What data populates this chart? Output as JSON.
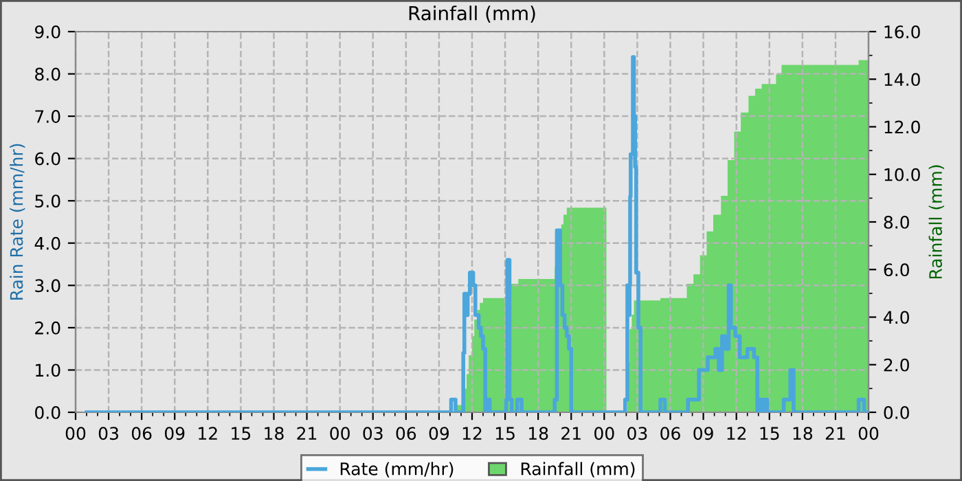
{
  "chart_data": {
    "type": "step",
    "title": "Rainfall (mm)",
    "ylabel": "Rain Rate (mm/hr)",
    "y2label": "Rainfall (mm)",
    "xlim": [
      0,
      72
    ],
    "xticks": [
      {
        "value": 0,
        "label": "00"
      },
      {
        "value": 3,
        "label": "03"
      },
      {
        "value": 6,
        "label": "06"
      },
      {
        "value": 9,
        "label": "09"
      },
      {
        "value": 12,
        "label": "12"
      },
      {
        "value": 15,
        "label": "15"
      },
      {
        "value": 18,
        "label": "18"
      },
      {
        "value": 21,
        "label": "21"
      },
      {
        "value": 24,
        "label": "00"
      },
      {
        "value": 27,
        "label": "03"
      },
      {
        "value": 30,
        "label": "06"
      },
      {
        "value": 33,
        "label": "09"
      },
      {
        "value": 36,
        "label": "12"
      },
      {
        "value": 39,
        "label": "15"
      },
      {
        "value": 42,
        "label": "18"
      },
      {
        "value": 45,
        "label": "21"
      },
      {
        "value": 48,
        "label": "00"
      },
      {
        "value": 51,
        "label": "03"
      },
      {
        "value": 54,
        "label": "06"
      },
      {
        "value": 57,
        "label": "09"
      },
      {
        "value": 60,
        "label": "12"
      },
      {
        "value": 63,
        "label": "15"
      },
      {
        "value": 66,
        "label": "18"
      },
      {
        "value": 69,
        "label": "21"
      },
      {
        "value": 72,
        "label": "00"
      }
    ],
    "ylim": [
      0,
      9
    ],
    "yticks": [
      {
        "value": 0,
        "label": "0.0"
      },
      {
        "value": 1,
        "label": "1.0"
      },
      {
        "value": 2,
        "label": "2.0"
      },
      {
        "value": 3,
        "label": "3.0"
      },
      {
        "value": 4,
        "label": "4.0"
      },
      {
        "value": 5,
        "label": "5.0"
      },
      {
        "value": 6,
        "label": "6.0"
      },
      {
        "value": 7,
        "label": "7.0"
      },
      {
        "value": 8,
        "label": "8.0"
      },
      {
        "value": 9,
        "label": "9.0"
      }
    ],
    "y2lim": [
      0,
      16
    ],
    "y2ticks": [
      {
        "value": 0,
        "label": "0.0"
      },
      {
        "value": 2,
        "label": "2.0"
      },
      {
        "value": 4,
        "label": "4.0"
      },
      {
        "value": 6,
        "label": "6.0"
      },
      {
        "value": 8,
        "label": "8.0"
      },
      {
        "value": 10,
        "label": "10.0"
      },
      {
        "value": 12,
        "label": "12.0"
      },
      {
        "value": 14,
        "label": "14.0"
      },
      {
        "value": 16,
        "label": "16.0"
      }
    ],
    "grid": true,
    "legend": "bottom",
    "series": [
      {
        "name": "Rate (mm/hr)",
        "color": "#4ba6dc",
        "x": [
          1,
          34.1,
          34.5,
          35.2,
          35.3,
          35.5,
          35.6,
          35.8,
          36.1,
          36.3,
          36.6,
          36.8,
          37.0,
          37.2,
          37.3,
          37.6,
          39.1,
          39.2,
          39.4,
          39.6,
          40.1,
          40.5,
          43.5,
          43.7,
          44.0,
          44.2,
          44.4,
          44.6,
          44.8,
          45.0,
          49.9,
          50.1,
          50.2,
          50.3,
          50.35,
          50.4,
          50.6,
          50.7,
          50.8,
          50.9,
          51.1,
          51.3,
          53.1,
          53.5,
          55.6,
          56.6,
          57.4,
          58.1,
          58.4,
          58.7,
          59.0,
          59.3,
          59.5,
          59.9,
          60.3,
          61.0,
          61.6,
          61.9,
          62.1,
          62.4,
          62.6,
          62.8,
          64.3,
          64.9,
          65.2,
          71.1,
          71.6,
          72
        ],
        "values": [
          0,
          0.3,
          0,
          1.4,
          2.8,
          2.3,
          2.8,
          3.3,
          3.0,
          2.3,
          2.0,
          1.8,
          1.5,
          0,
          0.3,
          0,
          0.3,
          3.6,
          0.3,
          0,
          0.3,
          0,
          0.3,
          4.3,
          3.0,
          2.3,
          2.0,
          1.8,
          1.5,
          0,
          0.3,
          3.0,
          2.3,
          3.0,
          5.1,
          6.1,
          8.4,
          7.0,
          5.8,
          3.3,
          2.0,
          0,
          0.3,
          0,
          0.3,
          1.0,
          1.3,
          1.5,
          1.0,
          1.8,
          1.5,
          3.0,
          2.0,
          1.8,
          1.3,
          1.5,
          1.3,
          0,
          0.3,
          0,
          0.3,
          0,
          0.3,
          1.0,
          0,
          0.3,
          0,
          0
        ]
      },
      {
        "name": "Rainfall (mm)",
        "type": "area",
        "axis": "y2",
        "color": "#6dd66d",
        "x": [
          1,
          34.5,
          35.2,
          35.3,
          35.5,
          35.7,
          36.0,
          36.2,
          36.5,
          36.7,
          37.0,
          39.1,
          39.5,
          40.2,
          43.5,
          43.7,
          44.1,
          44.3,
          44.6,
          48.2,
          50.1,
          50.3,
          50.5,
          50.7,
          53.1,
          55.5,
          56.1,
          56.7,
          57.3,
          57.9,
          58.6,
          59.2,
          59.8,
          60.4,
          61.1,
          61.7,
          62.3,
          63.6,
          64.1,
          71.1,
          72
        ],
        "values": [
          0,
          0.3,
          0.3,
          1.0,
          1.6,
          2.4,
          3.2,
          3.9,
          4.3,
          4.6,
          4.8,
          5.1,
          5.4,
          5.6,
          6.1,
          6.8,
          7.9,
          8.3,
          8.6,
          0,
          2.1,
          3.5,
          4.1,
          4.7,
          4.8,
          5.4,
          5.8,
          6.6,
          7.6,
          8.3,
          9.1,
          10.6,
          11.8,
          12.6,
          13.3,
          13.6,
          13.8,
          14.2,
          14.6,
          14.8,
          14.8
        ]
      }
    ]
  }
}
